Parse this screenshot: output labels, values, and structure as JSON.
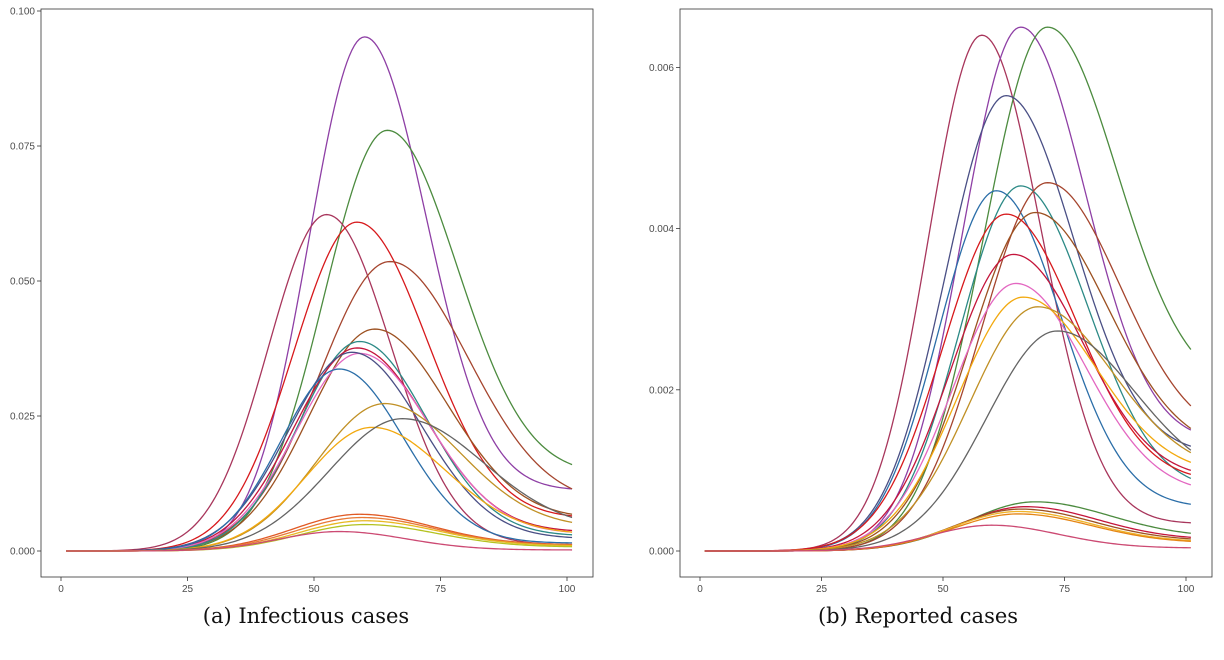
{
  "captions": [
    "(a) Infectious cases",
    "(b) Reported cases"
  ],
  "colors": {
    "purple": "#8e3fa5",
    "green": "#4c8b3f",
    "maroon": "#a8365c",
    "red": "#d7191c",
    "brown": "#a5452e",
    "sienna": "#9c5121",
    "teal": "#2c8a86",
    "crimson": "#c4153b",
    "pink": "#e367c1",
    "navy": "#4a4f85",
    "blue": "#2b6ea8",
    "goldenrod": "#c09025",
    "orange": "#f2a90f",
    "gray": "#646464",
    "orangered": "#e05a25",
    "tomato": "#e87a37",
    "amber": "#e8b822",
    "yellowgreen": "#b4c220",
    "deeppink": "#cc4a73",
    "darkorange": "#e58514",
    "gold": "#f0b429"
  },
  "chart_data": [
    {
      "type": "line",
      "title": "",
      "xlabel": "",
      "ylabel": "",
      "xlim": [
        1,
        101
      ],
      "ylim": [
        0,
        0.1
      ],
      "xticks": [
        0,
        25,
        50,
        75,
        100
      ],
      "yticks": [
        0.0,
        0.025,
        0.05,
        0.075,
        0.1
      ],
      "ytick_labels": [
        "0.000",
        "0.025",
        "0.050",
        "0.075",
        "0.100"
      ],
      "xtick_labels": [
        "0",
        "25",
        "50",
        "75",
        "100"
      ],
      "series": [
        {
          "color_key": "purple",
          "peak_x": 60,
          "peak_y": 0.0952,
          "width": 11.0,
          "end_y": 0.0115
        },
        {
          "color_key": "green",
          "peak_x": 64.5,
          "peak_y": 0.0779,
          "width": 12.5,
          "end_y": 0.016
        },
        {
          "color_key": "maroon",
          "peak_x": 52.5,
          "peak_y": 0.0623,
          "width": 11.5,
          "end_y": 0.0012
        },
        {
          "color_key": "red",
          "peak_x": 58.5,
          "peak_y": 0.0609,
          "width": 12.5,
          "end_y": 0.0065
        },
        {
          "color_key": "brown",
          "peak_x": 65,
          "peak_y": 0.0536,
          "width": 14.0,
          "end_y": 0.0115
        },
        {
          "color_key": "sienna",
          "peak_x": 62,
          "peak_y": 0.0411,
          "width": 13.0,
          "end_y": 0.0068
        },
        {
          "color_key": "teal",
          "peak_x": 59,
          "peak_y": 0.0388,
          "width": 12.0,
          "end_y": 0.003
        },
        {
          "color_key": "crimson",
          "peak_x": 58.5,
          "peak_y": 0.0376,
          "width": 12.5,
          "end_y": 0.0038
        },
        {
          "color_key": "pink",
          "peak_x": 59,
          "peak_y": 0.0366,
          "width": 12.5,
          "end_y": 0.0035
        },
        {
          "color_key": "navy",
          "peak_x": 57.5,
          "peak_y": 0.0368,
          "width": 12.5,
          "end_y": 0.0025
        },
        {
          "color_key": "blue",
          "peak_x": 55,
          "peak_y": 0.0337,
          "width": 11.5,
          "end_y": 0.0015
        },
        {
          "color_key": "goldenrod",
          "peak_x": 64,
          "peak_y": 0.0273,
          "width": 13.5,
          "end_y": 0.0053
        },
        {
          "color_key": "orange",
          "peak_x": 61.5,
          "peak_y": 0.0229,
          "width": 13.0,
          "end_y": 0.0035
        },
        {
          "color_key": "gray",
          "peak_x": 67.5,
          "peak_y": 0.0245,
          "width": 14.5,
          "end_y": 0.0062
        },
        {
          "color_key": "orangered",
          "peak_x": 59,
          "peak_y": 0.0068,
          "width": 13.0,
          "end_y": 0.0012
        },
        {
          "color_key": "tomato",
          "peak_x": 59.5,
          "peak_y": 0.0062,
          "width": 13.0,
          "end_y": 0.0011
        },
        {
          "color_key": "amber",
          "peak_x": 60,
          "peak_y": 0.0056,
          "width": 13.0,
          "end_y": 0.001
        },
        {
          "color_key": "yellowgreen",
          "peak_x": 60,
          "peak_y": 0.0049,
          "width": 13.0,
          "end_y": 0.0008
        },
        {
          "color_key": "deeppink",
          "peak_x": 55,
          "peak_y": 0.0036,
          "width": 12.0,
          "end_y": 0.0002
        }
      ]
    },
    {
      "type": "line",
      "title": "",
      "xlabel": "",
      "ylabel": "",
      "xlim": [
        1,
        101
      ],
      "ylim": [
        0,
        0.0067
      ],
      "xticks": [
        0,
        25,
        50,
        75,
        100
      ],
      "yticks": [
        0.0,
        0.002,
        0.004,
        0.006
      ],
      "ytick_labels": [
        "0.000",
        "0.002",
        "0.004",
        "0.006"
      ],
      "xtick_labels": [
        "0",
        "25",
        "50",
        "75",
        "100"
      ],
      "series": [
        {
          "color_key": "maroon",
          "peak_x": 58,
          "peak_y": 0.0064,
          "width": 11.0,
          "end_y": 0.00035
        },
        {
          "color_key": "purple",
          "peak_x": 66,
          "peak_y": 0.0065,
          "width": 12.0,
          "end_y": 0.0015
        },
        {
          "color_key": "green",
          "peak_x": 71.5,
          "peak_y": 0.0065,
          "width": 13.0,
          "end_y": 0.0025
        },
        {
          "color_key": "navy",
          "peak_x": 63,
          "peak_y": 0.00565,
          "width": 12.5,
          "end_y": 0.0013
        },
        {
          "color_key": "blue",
          "peak_x": 61,
          "peak_y": 0.00447,
          "width": 12.0,
          "end_y": 0.00058
        },
        {
          "color_key": "teal",
          "peak_x": 66,
          "peak_y": 0.00453,
          "width": 12.5,
          "end_y": 0.0009
        },
        {
          "color_key": "brown",
          "peak_x": 71.5,
          "peak_y": 0.00457,
          "width": 13.5,
          "end_y": 0.0018
        },
        {
          "color_key": "sienna",
          "peak_x": 69,
          "peak_y": 0.0042,
          "width": 13.5,
          "end_y": 0.00152
        },
        {
          "color_key": "red",
          "peak_x": 63,
          "peak_y": 0.00418,
          "width": 13.0,
          "end_y": 0.00095
        },
        {
          "color_key": "crimson",
          "peak_x": 64.5,
          "peak_y": 0.00368,
          "width": 13.0,
          "end_y": 0.001
        },
        {
          "color_key": "pink",
          "peak_x": 65,
          "peak_y": 0.00332,
          "width": 13.0,
          "end_y": 0.00082
        },
        {
          "color_key": "orange",
          "peak_x": 66.5,
          "peak_y": 0.00315,
          "width": 13.5,
          "end_y": 0.0011
        },
        {
          "color_key": "goldenrod",
          "peak_x": 69.5,
          "peak_y": 0.00303,
          "width": 14.0,
          "end_y": 0.00122
        },
        {
          "color_key": "gray",
          "peak_x": 73.5,
          "peak_y": 0.00273,
          "width": 14.5,
          "end_y": 0.00125
        },
        {
          "color_key": "green",
          "peak_x": 69,
          "peak_y": 0.00061,
          "width": 14.0,
          "end_y": 0.00022
        },
        {
          "color_key": "crimson",
          "peak_x": 67,
          "peak_y": 0.00055,
          "width": 13.5,
          "end_y": 0.00017
        },
        {
          "color_key": "sienna",
          "peak_x": 66,
          "peak_y": 0.00052,
          "width": 13.5,
          "end_y": 0.00015
        },
        {
          "color_key": "gold",
          "peak_x": 65.5,
          "peak_y": 0.00049,
          "width": 13.5,
          "end_y": 0.00013
        },
        {
          "color_key": "darkorange",
          "peak_x": 65.5,
          "peak_y": 0.00046,
          "width": 13.5,
          "end_y": 0.00012
        },
        {
          "color_key": "deeppink",
          "peak_x": 60,
          "peak_y": 0.00032,
          "width": 12.5,
          "end_y": 4e-05
        }
      ]
    }
  ]
}
